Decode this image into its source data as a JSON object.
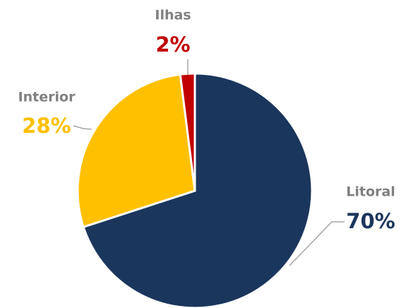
{
  "chart_data": {
    "type": "pie",
    "categories": [
      "Litoral",
      "Interior",
      "Ilhas"
    ],
    "values": [
      70,
      28,
      2
    ],
    "value_labels": [
      "70%",
      "28%",
      "2%"
    ],
    "colors": [
      "#1b365d",
      "#ffc000",
      "#c00000"
    ]
  }
}
